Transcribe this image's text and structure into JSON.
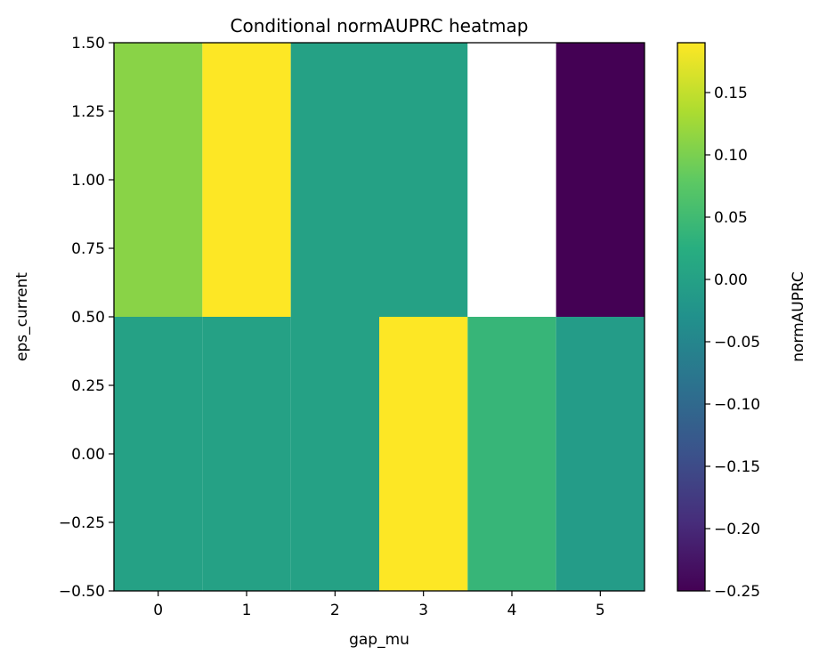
{
  "chart_data": {
    "type": "heatmap",
    "title": "Conditional normAUPRC heatmap",
    "xlabel": "gap_mu",
    "ylabel": "eps_current",
    "x_categories": [
      "0",
      "1",
      "2",
      "3",
      "4",
      "5"
    ],
    "y_rows": [
      0,
      1
    ],
    "values": [
      [
        0.0,
        0.0,
        0.0,
        0.19,
        0.04,
        -0.01
      ],
      [
        0.11,
        0.19,
        0.0,
        0.0,
        null,
        -0.25
      ]
    ],
    "xlim": [
      -0.5,
      5.5
    ],
    "ylim": [
      -0.5,
      1.5
    ],
    "y_ticks": [
      "−0.50",
      "−0.25",
      "0.00",
      "0.25",
      "0.50",
      "0.75",
      "1.00",
      "1.25",
      "1.50"
    ],
    "y_tick_values": [
      -0.5,
      -0.25,
      0.0,
      0.25,
      0.5,
      0.75,
      1.0,
      1.25,
      1.5
    ],
    "colorbar": {
      "label": "normAUPRC",
      "min": -0.25,
      "max": 0.19,
      "colormap": "viridis",
      "ticks": [
        "−0.25",
        "−0.20",
        "−0.15",
        "−0.10",
        "−0.05",
        "0.00",
        "0.05",
        "0.10",
        "0.15"
      ],
      "tick_values": [
        -0.25,
        -0.2,
        -0.15,
        -0.1,
        -0.05,
        0.0,
        0.05,
        0.1,
        0.15
      ]
    },
    "missing_color": "#ffffff"
  }
}
